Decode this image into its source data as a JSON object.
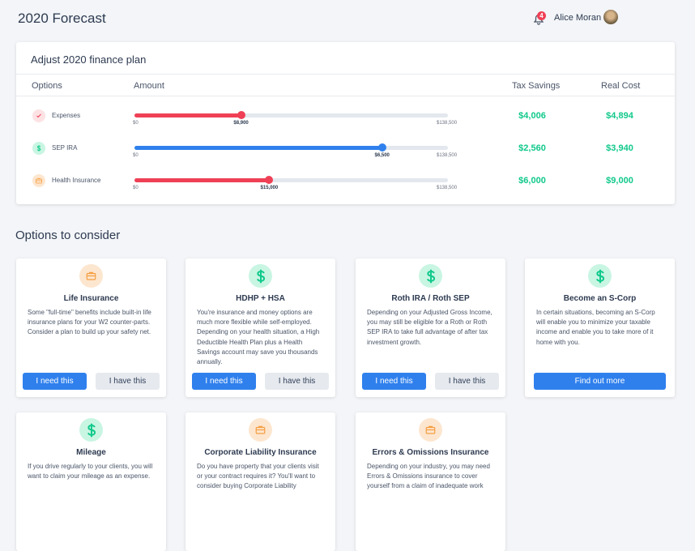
{
  "header": {
    "title": "2020 Forecast",
    "notification_count": 4,
    "user_name": "Alice Moran"
  },
  "plan": {
    "title": "Adjust 2020 finance plan",
    "columns": [
      "Options",
      "Amount",
      "Tax Savings",
      "Real Cost"
    ],
    "rows": [
      {
        "option": "Expenses",
        "icon": "check",
        "color": "#ef4056",
        "min": "$0",
        "amount": "$8,900",
        "max": "$138,500",
        "tax_savings": "$4,006",
        "real_cost": "$4,894"
      },
      {
        "option": "SEP IRA",
        "icon": "dollar",
        "color": "#2f80ed",
        "min": "$0",
        "amount": "$6,500",
        "max": "$138,500",
        "tax_savings": "$2,560",
        "real_cost": "$3,940"
      },
      {
        "option": "Health Insurance",
        "icon": "briefcase",
        "color": "#ef4056",
        "min": "$0",
        "amount": "$15,000",
        "max": "$138,500",
        "tax_savings": "$6,000",
        "real_cost": "$9,000"
      }
    ]
  },
  "options": {
    "title": "Options to consider",
    "cards": [
      {
        "title": "Life Insurance",
        "icon": "briefcase",
        "description": "Some \"full-time\" benefits include built-in life insurance plans for your W2 counter-parts. Consider a plan to build up your safety net.",
        "buttons": [
          "I need this",
          "I have this"
        ]
      },
      {
        "title": "HDHP + HSA",
        "icon": "dollar",
        "description": "You're insurance and money options are much more flexible while self-employed. Depending on your health situation, a High Deductible Health Plan plus a Health Savings account may save you thousands annually.",
        "buttons": [
          "I need this",
          "I have this"
        ]
      },
      {
        "title": "Roth IRA / Roth SEP",
        "icon": "dollar",
        "description": "Depending on your Adjusted Gross Income, you may still be eligible for a Roth or Roth SEP IRA to take full advantage of after tax investment growth.",
        "buttons": [
          "I need this",
          "I have this"
        ]
      },
      {
        "title": "Become an S-Corp",
        "icon": "dollar",
        "description": "In certain situations, becoming an S-Corp will enable you to minimize your taxable income and enable you to take more of it home with you.",
        "buttons": [
          "Find out more"
        ]
      },
      {
        "title": "Mileage",
        "icon": "dollar",
        "description": "If you drive regularly to your clients, you will want to claim your mileage as an expense.",
        "buttons": []
      },
      {
        "title": "Corporate Liability Insurance",
        "icon": "briefcase",
        "description": "Do you have property that your clients visit or your contract requires it? You'll want to consider buying Corporate Liability",
        "buttons": []
      },
      {
        "title": "Errors & Omissions Insurance",
        "icon": "briefcase",
        "description": "Depending on your industry, you may need Errors & Omissions insurance to cover yourself from a claim of inadequate work",
        "buttons": []
      }
    ]
  }
}
